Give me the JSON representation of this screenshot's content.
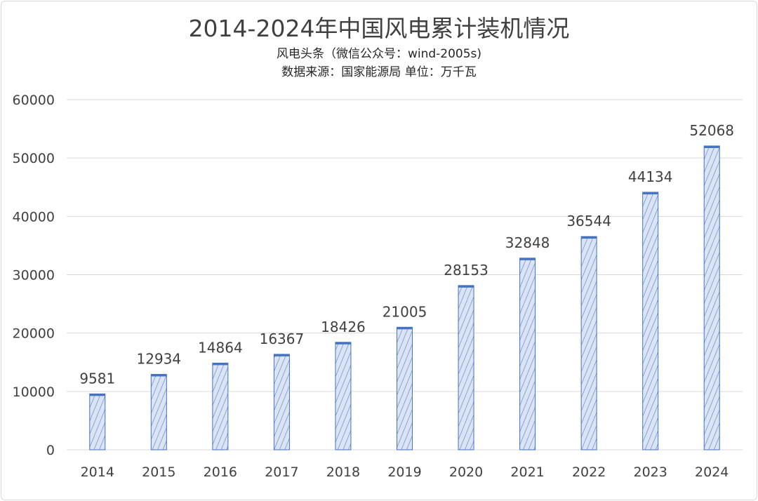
{
  "chart_data": {
    "type": "bar",
    "title": "2014-2024年中国风电累计装机情况",
    "subtitle_lines": [
      "风电头条（微信公众号：wind-2005s)",
      "数据来源：国家能源局 单位：万千瓦"
    ],
    "xlabel": "",
    "ylabel": "",
    "categories": [
      "2014",
      "2015",
      "2016",
      "2017",
      "2018",
      "2019",
      "2020",
      "2021",
      "2022",
      "2023",
      "2024"
    ],
    "values": [
      9581,
      12934,
      14864,
      16367,
      18426,
      21005,
      28153,
      32848,
      36544,
      44134,
      52068
    ],
    "data_labels": [
      "9581",
      "12934",
      "14864",
      "16367",
      "18426",
      "21005",
      "28153",
      "32848",
      "36544",
      "44134",
      "52068"
    ],
    "ylim": [
      0,
      60000
    ],
    "yticks": [
      0,
      10000,
      20000,
      30000,
      40000,
      50000,
      60000
    ],
    "ytick_labels": [
      "0",
      "10000",
      "20000",
      "30000",
      "40000",
      "50000",
      "60000"
    ],
    "grid": true,
    "legend": "none",
    "bar_color": "#4472c4",
    "bar_fill_color": "#dbe4f5"
  }
}
